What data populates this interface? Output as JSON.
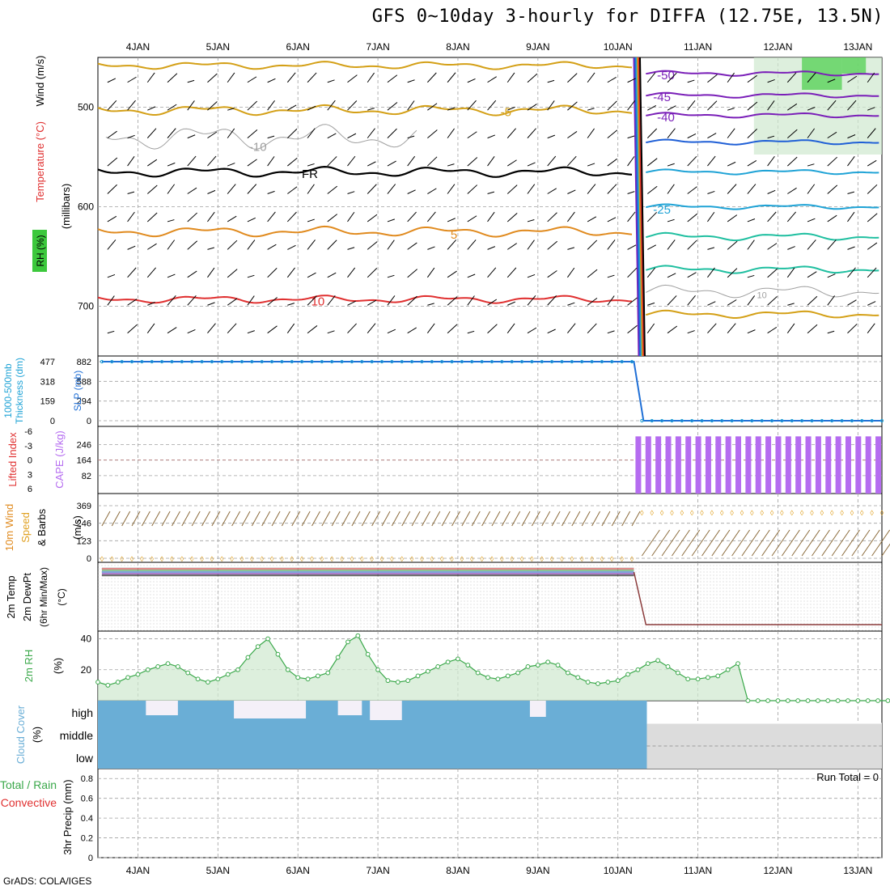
{
  "title": "GFS 0~10day 3-hourly for DIFFA (12.75E, 13.5N)",
  "credit": "GrADS: COLA/IGES",
  "x_ticks": [
    "4JAN",
    "5JAN",
    "6JAN",
    "7JAN",
    "8JAN",
    "9JAN",
    "10JAN",
    "11JAN",
    "12JAN",
    "13JAN"
  ],
  "colors": {
    "grid": "#a0a0a0",
    "temp_orange": "#e08a1e",
    "temp_gold": "#d4a017",
    "temp_red": "#e03030",
    "freezing": "#000000",
    "cold_purple": "#7a1fb8",
    "cold_blue": "#1f5fd6",
    "cold_cyan": "#1fa3d6",
    "cold_teal": "#1fbfa0",
    "rh_green": "#3aa84a",
    "cape_purple": "#b56cf0",
    "slp_blue": "#1f6fd6",
    "cloud_blue": "#6aaed6",
    "cloud_gray": "#dcdcdc",
    "wind_orange": "#e0a020",
    "barb_brown": "#8b6b3b"
  },
  "chart_data": [
    {
      "type": "line",
      "panel": "upper-air cross section",
      "left_labels": [
        "Wind (m/s)",
        "Temperature (°C)",
        "RH (%)"
      ],
      "ylabel": "(millibars)",
      "y_ticks": [
        500,
        600,
        700
      ],
      "ylim": [
        450,
        750
      ],
      "contour_labels": [
        "-5",
        "FR",
        "-10",
        "5",
        "10",
        "-50",
        "-45",
        "-40",
        "-25",
        "10"
      ],
      "series": [
        {
          "name": "-5",
          "approx_level_mb": 503
        },
        {
          "name": "FR",
          "approx_level_mb": 565
        },
        {
          "name": "5",
          "approx_level_mb": 625
        },
        {
          "name": "10",
          "approx_level_mb": 693
        }
      ]
    },
    {
      "type": "line",
      "panel": "thickness and SLP",
      "left_labels": [
        "1000-500mb",
        "Thickness (dm)",
        "SLP (mb)"
      ],
      "y_ticks_left": [
        0,
        159,
        318,
        477
      ],
      "y_ticks_right": [
        0,
        294,
        588,
        882
      ],
      "series": [
        {
          "name": "SLP",
          "x_end": "10JAN",
          "value_before": 882,
          "value_after": 0
        }
      ]
    },
    {
      "type": "bar",
      "panel": "stability",
      "left_labels": [
        "Lifted Index",
        "CAPE (J/kg)"
      ],
      "y_ticks_li": [
        "-6",
        "-3",
        "0",
        "3",
        "6"
      ],
      "y_ticks_cape": [
        82,
        164,
        246
      ],
      "cape_bar_value": 290,
      "cape_bar_count": 25,
      "cape_start": "10JAN"
    },
    {
      "type": "line",
      "panel": "10m wind",
      "left_labels": [
        "10m Wind",
        "Speed",
        "& Barbs",
        "(m/s)"
      ],
      "y_ticks": [
        0,
        123,
        246,
        369
      ],
      "speed_before": 0,
      "speed_after": 369
    },
    {
      "type": "line",
      "panel": "2m temperature",
      "left_labels": [
        "2m Temp",
        "2m DewPt",
        "(6hr Min/Max)",
        "(°C)"
      ]
    },
    {
      "type": "area",
      "panel": "2m RH",
      "left_labels": [
        "2m RH",
        "(%)"
      ],
      "y_ticks": [
        20,
        40
      ],
      "ylim": [
        0,
        45
      ],
      "x_start_day": 3.5,
      "step_days": 0.125,
      "values": [
        12,
        10,
        12,
        15,
        17,
        20,
        22,
        24,
        22,
        18,
        14,
        12,
        14,
        17,
        20,
        28,
        35,
        40,
        30,
        20,
        15,
        14,
        16,
        18,
        28,
        38,
        42,
        30,
        20,
        13,
        12,
        13,
        16,
        19,
        22,
        25,
        27,
        23,
        18,
        15,
        14,
        16,
        18,
        22,
        23,
        25,
        23,
        18,
        15,
        12,
        11,
        12,
        13,
        17,
        20,
        24,
        26,
        22,
        18,
        14,
        14,
        15,
        16,
        20,
        24,
        0,
        0,
        0,
        0,
        0,
        0,
        0,
        0,
        0,
        0,
        0,
        0,
        0,
        0,
        0,
        0
      ]
    },
    {
      "type": "area",
      "panel": "cloud cover",
      "left_labels": [
        "Cloud Cover",
        "(%)"
      ],
      "levels": [
        "high",
        "middle",
        "low"
      ]
    },
    {
      "type": "line",
      "panel": "3hr precip",
      "left_labels": [
        "Total / Rain",
        "Convective",
        "3hr Precip (mm)"
      ],
      "y_ticks": [
        0,
        0.2,
        0.4,
        0.6,
        0.8
      ],
      "ylim": [
        0,
        0.9
      ],
      "annotation": "Run Total = 0",
      "values": []
    }
  ]
}
